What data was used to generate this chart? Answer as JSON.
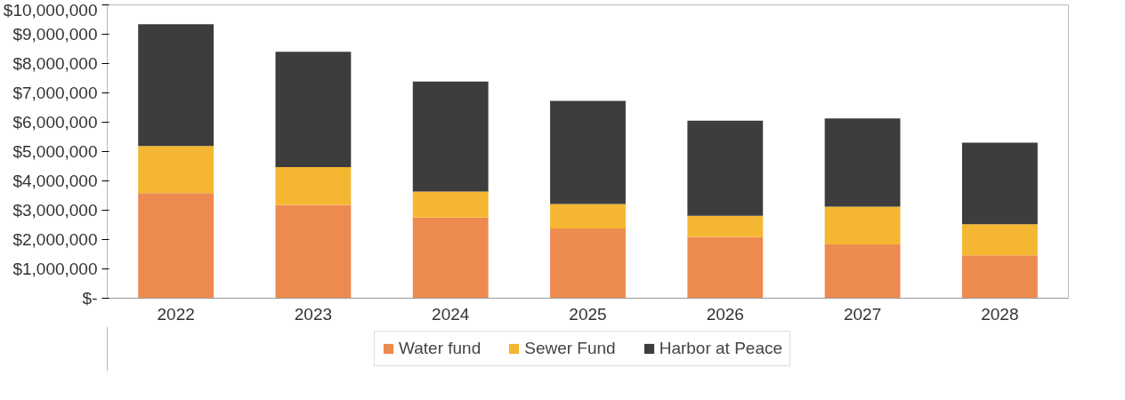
{
  "chart_data": {
    "type": "bar",
    "stacked": true,
    "categories": [
      "2022",
      "2023",
      "2024",
      "2025",
      "2026",
      "2027",
      "2028"
    ],
    "series": [
      {
        "name": "Water fund",
        "color": "#ed8a4f",
        "values": [
          3580000,
          3180000,
          2750000,
          2380000,
          2090000,
          1830000,
          1460000
        ]
      },
      {
        "name": "Sewer Fund",
        "color": "#f5b731",
        "values": [
          1610000,
          1290000,
          890000,
          830000,
          720000,
          1290000,
          1060000
        ]
      },
      {
        "name": "Harbor at Peace",
        "color": "#3d3d3d",
        "values": [
          4150000,
          3930000,
          3750000,
          3520000,
          3240000,
          3010000,
          2780000
        ]
      }
    ],
    "ylim": [
      0,
      10000000
    ],
    "yticks": [
      {
        "value": 0,
        "label": "$-"
      },
      {
        "value": 1000000,
        "label": "$1,000,000"
      },
      {
        "value": 2000000,
        "label": "$2,000,000"
      },
      {
        "value": 3000000,
        "label": "$3,000,000"
      },
      {
        "value": 4000000,
        "label": "$4,000,000"
      },
      {
        "value": 5000000,
        "label": "$5,000,000"
      },
      {
        "value": 6000000,
        "label": "$6,000,000"
      },
      {
        "value": 7000000,
        "label": "$7,000,000"
      },
      {
        "value": 8000000,
        "label": "$8,000,000"
      },
      {
        "value": 9000000,
        "label": "$9,000,000"
      },
      {
        "value": 10000000,
        "label": "$10,000,000"
      }
    ],
    "grid": false,
    "legend": "bottom"
  }
}
